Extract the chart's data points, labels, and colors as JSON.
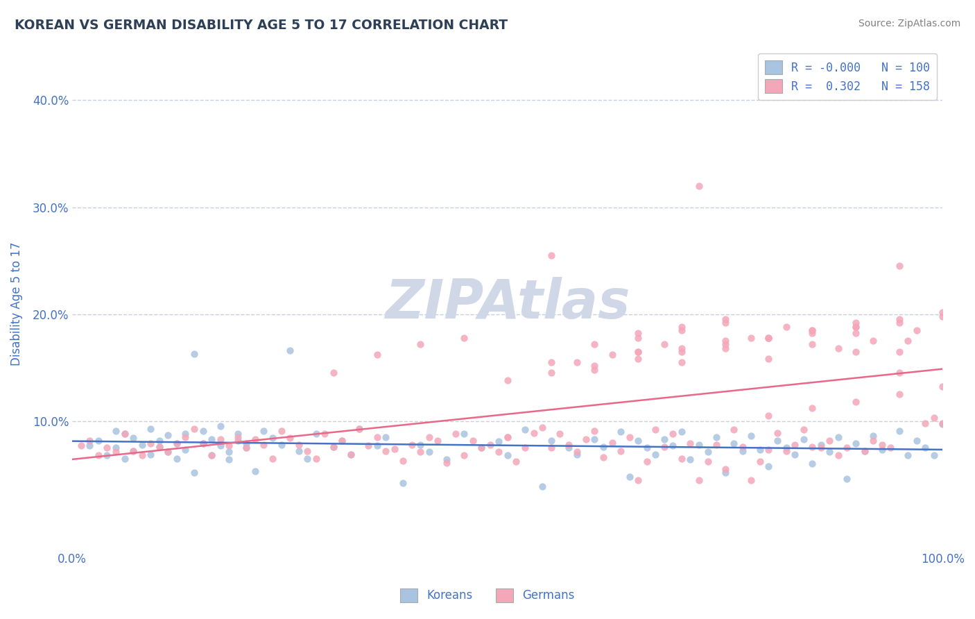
{
  "title": "KOREAN VS GERMAN DISABILITY AGE 5 TO 17 CORRELATION CHART",
  "source_text": "Source: ZipAtlas.com",
  "xlabel": "",
  "ylabel": "Disability Age 5 to 17",
  "xlim": [
    0.0,
    1.0
  ],
  "ylim": [
    -0.02,
    0.44
  ],
  "x_tick_labels": [
    "0.0%",
    "100.0%"
  ],
  "y_tick_labels": [
    "10.0%",
    "20.0%",
    "30.0%",
    "40.0%"
  ],
  "y_tick_values": [
    0.1,
    0.2,
    0.3,
    0.4
  ],
  "legend_r_korean": "-0.000",
  "legend_n_korean": "100",
  "legend_r_german": "0.302",
  "legend_n_german": "158",
  "korean_color": "#a8c4e0",
  "german_color": "#f4a7b9",
  "korean_line_color": "#4472c4",
  "german_line_color": "#e8688a",
  "title_color": "#2E4057",
  "axis_color": "#4472c4",
  "watermark_color": "#d0d8e8",
  "background_color": "#ffffff",
  "grid_color": "#c8d0e0",
  "seed": 42,
  "korean_scatter_x": [
    0.02,
    0.03,
    0.04,
    0.05,
    0.05,
    0.06,
    0.06,
    0.07,
    0.07,
    0.08,
    0.09,
    0.09,
    0.1,
    0.1,
    0.11,
    0.11,
    0.12,
    0.12,
    0.13,
    0.13,
    0.14,
    0.14,
    0.15,
    0.15,
    0.16,
    0.16,
    0.17,
    0.17,
    0.18,
    0.18,
    0.19,
    0.19,
    0.2,
    0.2,
    0.21,
    0.22,
    0.23,
    0.24,
    0.25,
    0.26,
    0.27,
    0.28,
    0.3,
    0.31,
    0.32,
    0.33,
    0.35,
    0.36,
    0.38,
    0.4,
    0.41,
    0.43,
    0.45,
    0.47,
    0.49,
    0.5,
    0.52,
    0.54,
    0.55,
    0.57,
    0.58,
    0.6,
    0.61,
    0.63,
    0.64,
    0.65,
    0.66,
    0.67,
    0.68,
    0.69,
    0.7,
    0.71,
    0.72,
    0.73,
    0.74,
    0.75,
    0.76,
    0.77,
    0.78,
    0.79,
    0.8,
    0.81,
    0.82,
    0.83,
    0.84,
    0.85,
    0.86,
    0.87,
    0.88,
    0.89,
    0.9,
    0.91,
    0.92,
    0.93,
    0.95,
    0.96,
    0.97,
    0.98,
    0.99,
    1.0
  ],
  "korean_scatter_y": [
    0.077,
    0.082,
    0.068,
    0.075,
    0.091,
    0.065,
    0.088,
    0.072,
    0.084,
    0.078,
    0.069,
    0.093,
    0.076,
    0.082,
    0.071,
    0.087,
    0.079,
    0.065,
    0.088,
    0.073,
    0.163,
    0.052,
    0.079,
    0.091,
    0.068,
    0.083,
    0.077,
    0.095,
    0.071,
    0.064,
    0.082,
    0.088,
    0.075,
    0.079,
    0.053,
    0.091,
    0.084,
    0.078,
    0.166,
    0.072,
    0.065,
    0.088,
    0.076,
    0.082,
    0.069,
    0.093,
    0.077,
    0.085,
    0.042,
    0.078,
    0.071,
    0.064,
    0.088,
    0.075,
    0.081,
    0.068,
    0.092,
    0.039,
    0.082,
    0.075,
    0.069,
    0.083,
    0.076,
    0.09,
    0.048,
    0.082,
    0.075,
    0.069,
    0.083,
    0.077,
    0.09,
    0.064,
    0.078,
    0.071,
    0.085,
    0.052,
    0.079,
    0.072,
    0.086,
    0.073,
    0.058,
    0.082,
    0.075,
    0.069,
    0.083,
    0.06,
    0.078,
    0.071,
    0.085,
    0.046,
    0.079,
    0.072,
    0.086,
    0.073,
    0.091,
    0.068,
    0.082,
    0.075,
    0.068,
    0.097
  ],
  "german_scatter_x": [
    0.01,
    0.02,
    0.03,
    0.04,
    0.05,
    0.06,
    0.07,
    0.08,
    0.09,
    0.1,
    0.11,
    0.12,
    0.13,
    0.14,
    0.15,
    0.16,
    0.17,
    0.18,
    0.19,
    0.2,
    0.21,
    0.22,
    0.23,
    0.24,
    0.25,
    0.26,
    0.27,
    0.28,
    0.29,
    0.3,
    0.31,
    0.32,
    0.33,
    0.34,
    0.35,
    0.36,
    0.37,
    0.38,
    0.39,
    0.4,
    0.41,
    0.42,
    0.43,
    0.44,
    0.45,
    0.46,
    0.47,
    0.48,
    0.49,
    0.5,
    0.51,
    0.52,
    0.53,
    0.54,
    0.55,
    0.56,
    0.57,
    0.58,
    0.59,
    0.6,
    0.61,
    0.62,
    0.63,
    0.64,
    0.65,
    0.66,
    0.67,
    0.68,
    0.69,
    0.7,
    0.71,
    0.72,
    0.73,
    0.74,
    0.75,
    0.76,
    0.77,
    0.78,
    0.79,
    0.8,
    0.81,
    0.82,
    0.83,
    0.84,
    0.85,
    0.86,
    0.87,
    0.88,
    0.89,
    0.9,
    0.91,
    0.92,
    0.93,
    0.94,
    0.95,
    0.96,
    0.97,
    0.98,
    0.99,
    1.0,
    0.3,
    0.35,
    0.4,
    0.45,
    0.5,
    0.55,
    0.6,
    0.65,
    0.7,
    0.75,
    0.8,
    0.85,
    0.9,
    0.95,
    0.58,
    0.62,
    0.68,
    0.72,
    0.78,
    0.82,
    0.88,
    0.92,
    0.65,
    0.7,
    0.75,
    0.8,
    0.85,
    0.9,
    0.95,
    1.0,
    0.5,
    0.55,
    0.6,
    0.65,
    0.7,
    0.75,
    0.8,
    0.85,
    0.9,
    0.95,
    0.6,
    0.65,
    0.7,
    0.75,
    0.8,
    0.85,
    0.9,
    0.95,
    1.0,
    0.55,
    0.65,
    0.75,
    0.85,
    0.95,
    0.7,
    0.8,
    0.9,
    1.0
  ],
  "german_scatter_y": [
    0.077,
    0.082,
    0.068,
    0.075,
    0.071,
    0.088,
    0.072,
    0.068,
    0.079,
    0.076,
    0.071,
    0.079,
    0.085,
    0.093,
    0.079,
    0.068,
    0.083,
    0.077,
    0.085,
    0.075,
    0.083,
    0.078,
    0.065,
    0.091,
    0.084,
    0.078,
    0.072,
    0.065,
    0.088,
    0.076,
    0.082,
    0.069,
    0.093,
    0.077,
    0.085,
    0.072,
    0.074,
    0.063,
    0.078,
    0.071,
    0.085,
    0.082,
    0.061,
    0.088,
    0.068,
    0.082,
    0.075,
    0.078,
    0.071,
    0.085,
    0.062,
    0.075,
    0.089,
    0.094,
    0.075,
    0.088,
    0.078,
    0.071,
    0.083,
    0.091,
    0.066,
    0.08,
    0.072,
    0.085,
    0.045,
    0.062,
    0.092,
    0.076,
    0.088,
    0.065,
    0.079,
    0.045,
    0.062,
    0.078,
    0.055,
    0.092,
    0.076,
    0.045,
    0.062,
    0.073,
    0.089,
    0.072,
    0.078,
    0.092,
    0.076,
    0.075,
    0.082,
    0.068,
    0.075,
    0.165,
    0.072,
    0.082,
    0.078,
    0.075,
    0.245,
    0.175,
    0.185,
    0.098,
    0.103,
    0.098,
    0.145,
    0.162,
    0.172,
    0.178,
    0.085,
    0.255,
    0.148,
    0.165,
    0.155,
    0.168,
    0.178,
    0.182,
    0.188,
    0.145,
    0.155,
    0.162,
    0.172,
    0.32,
    0.178,
    0.188,
    0.168,
    0.175,
    0.182,
    0.188,
    0.195,
    0.105,
    0.112,
    0.118,
    0.125,
    0.132,
    0.138,
    0.145,
    0.152,
    0.158,
    0.165,
    0.172,
    0.178,
    0.185,
    0.192,
    0.165,
    0.172,
    0.178,
    0.185,
    0.192,
    0.158,
    0.172,
    0.182,
    0.192,
    0.202,
    0.155,
    0.165,
    0.175,
    0.185,
    0.195,
    0.168,
    0.178,
    0.188,
    0.198
  ]
}
